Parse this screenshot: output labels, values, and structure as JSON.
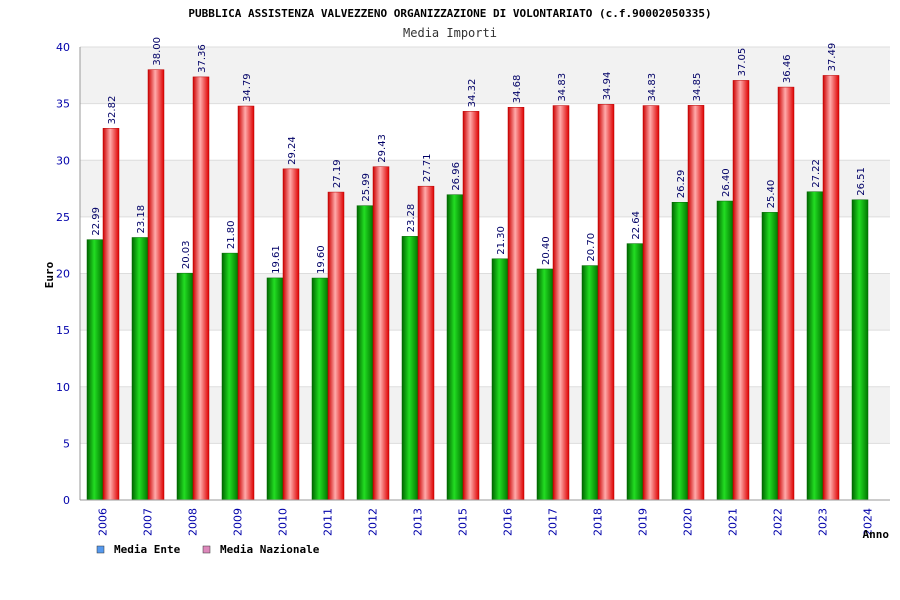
{
  "chart_data": {
    "type": "bar",
    "title": "PUBBLICA ASSISTENZA VALVEZZENO ORGANIZZAZIONE DI VOLONTARIATO (c.f.90002050335)",
    "subtitle": "Media Importi",
    "xlabel": "Anno",
    "ylabel": "Euro",
    "ylim": [
      0,
      40
    ],
    "yticks": [
      "0",
      "5",
      "10",
      "15",
      "20",
      "25",
      "30",
      "35",
      "40"
    ],
    "grid": true,
    "legend_position": "bottom-left",
    "categories": [
      "2006",
      "2007",
      "2008",
      "2009",
      "2010",
      "2011",
      "2012",
      "2013",
      "2015",
      "2016",
      "2017",
      "2018",
      "2019",
      "2020",
      "2021",
      "2022",
      "2023",
      "2024"
    ],
    "series": [
      {
        "name": "Media Ente",
        "legend_color": "#5599ee",
        "bar_color": "#00bb00",
        "values": [
          22.99,
          23.18,
          20.03,
          21.8,
          19.61,
          19.6,
          25.99,
          23.28,
          26.96,
          21.3,
          20.4,
          20.7,
          22.64,
          26.29,
          26.4,
          25.4,
          27.22,
          26.51
        ],
        "labels": [
          "22.99",
          "23.18",
          "20.03",
          "21.80",
          "19.61",
          "19.60",
          "25.99",
          "23.28",
          "26.96",
          "21.30",
          "20.40",
          "20.70",
          "22.64",
          "26.29",
          "26.40",
          "25.40",
          "27.22",
          "26.51"
        ]
      },
      {
        "name": "Media Nazionale",
        "legend_color": "#dd88bb",
        "bar_color": "#ee2222",
        "values": [
          32.82,
          38.0,
          37.36,
          34.79,
          29.24,
          27.19,
          29.43,
          27.71,
          34.32,
          34.68,
          34.83,
          34.94,
          34.83,
          34.85,
          37.05,
          36.46,
          37.49,
          null
        ],
        "labels": [
          "32.82",
          "38.00",
          "37.36",
          "34.79",
          "29.24",
          "27.19",
          "29.43",
          "27.71",
          "34.32",
          "34.68",
          "34.83",
          "34.94",
          "34.83",
          "34.85",
          "37.05",
          "36.46",
          "37.49",
          null
        ]
      }
    ]
  }
}
